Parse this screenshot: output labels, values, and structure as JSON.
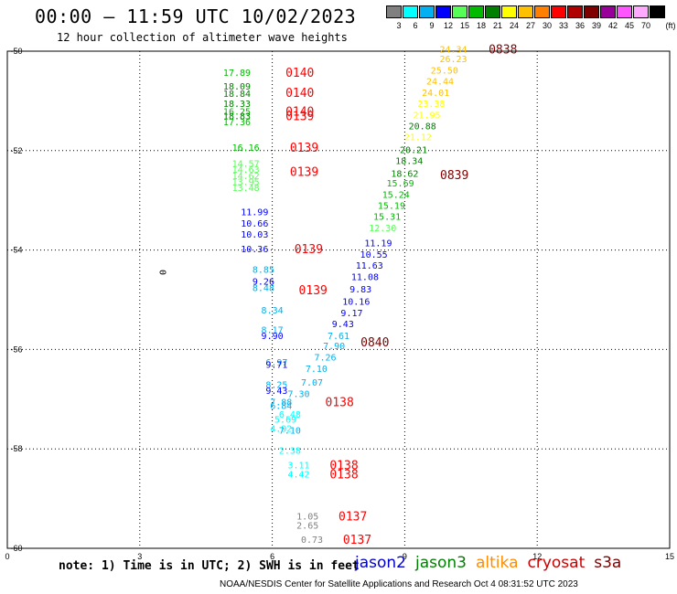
{
  "header": {
    "title": "00:00 – 11:59 UTC 10/02/2023",
    "subtitle": "12 hour collection of altimeter wave heights"
  },
  "legend": {
    "unit": "(ft)",
    "bins": [
      {
        "label": "3",
        "color": "#808080"
      },
      {
        "label": "6",
        "color": "#00ffff"
      },
      {
        "label": "9",
        "color": "#00b0f0"
      },
      {
        "label": "12",
        "color": "#0000ff"
      },
      {
        "label": "15",
        "color": "#55ff55"
      },
      {
        "label": "18",
        "color": "#00bb00"
      },
      {
        "label": "21",
        "color": "#008000"
      },
      {
        "label": "24",
        "color": "#ffff00"
      },
      {
        "label": "27",
        "color": "#ffc000"
      },
      {
        "label": "30",
        "color": "#ff8000"
      },
      {
        "label": "33",
        "color": "#ff0000"
      },
      {
        "label": "36",
        "color": "#b00000"
      },
      {
        "label": "39",
        "color": "#800000"
      },
      {
        "label": "42",
        "color": "#990099"
      },
      {
        "label": "45",
        "color": "#ff55ff"
      },
      {
        "label": "70",
        "color": "#ffaaff"
      },
      {
        "label": "",
        "color": "#000000"
      }
    ]
  },
  "note": "note: 1) Time is in UTC; 2) SWH is in feet",
  "satellites": [
    {
      "name": "jason2",
      "color": "#0000cc"
    },
    {
      "name": "jason3",
      "color": "#008000"
    },
    {
      "name": "altika",
      "color": "#ff8c00"
    },
    {
      "name": "cryosat",
      "color": "#cc0000"
    },
    {
      "name": "s3a",
      "color": "#800000"
    }
  ],
  "footer": "NOAA/NESDIS Center for Satellite Applications and Research   Oct  4 08:31:52 UTC 2023",
  "chart_data": {
    "type": "scatter",
    "x_ticks": [
      "0",
      "3",
      "6",
      "9",
      "12",
      "15"
    ],
    "y_ticks": [
      "-50",
      "-52",
      "-54",
      "-56",
      "-58",
      "-60"
    ],
    "xlim": [
      0,
      15
    ],
    "ylim": [
      -60.0,
      -50.0
    ],
    "grid": true,
    "contour_label": "0",
    "pass_labels": [
      {
        "text": "0140",
        "x": 6.3,
        "y": -50.42,
        "color": "#ff0000"
      },
      {
        "text": "0140",
        "x": 6.3,
        "y": -50.83,
        "color": "#ff0000"
      },
      {
        "text": "0140",
        "x": 6.3,
        "y": -51.2,
        "color": "#ff0000"
      },
      {
        "text": "0139",
        "x": 6.3,
        "y": -51.3,
        "color": "#ff0000"
      },
      {
        "text": "0139",
        "x": 6.4,
        "y": -51.93,
        "color": "#ff0000"
      },
      {
        "text": "0139",
        "x": 6.4,
        "y": -52.42,
        "color": "#ff0000"
      },
      {
        "text": "0139",
        "x": 6.5,
        "y": -53.97,
        "color": "#ff0000"
      },
      {
        "text": "0139",
        "x": 6.6,
        "y": -54.8,
        "color": "#ff0000"
      },
      {
        "text": "0138",
        "x": 7.2,
        "y": -57.05,
        "color": "#ff0000"
      },
      {
        "text": "0138",
        "x": 7.3,
        "y": -58.32,
        "color": "#ff0000"
      },
      {
        "text": "0138",
        "x": 7.3,
        "y": -58.5,
        "color": "#ff0000"
      },
      {
        "text": "0137",
        "x": 7.5,
        "y": -59.35,
        "color": "#ff0000"
      },
      {
        "text": "0137",
        "x": 7.6,
        "y": -59.82,
        "color": "#ff0000"
      },
      {
        "text": "0838",
        "x": 10.9,
        "y": -49.95,
        "color": "#800000"
      },
      {
        "text": "0839",
        "x": 9.8,
        "y": -52.48,
        "color": "#800000"
      },
      {
        "text": "0840",
        "x": 8.0,
        "y": -55.85,
        "color": "#800000"
      }
    ],
    "swh_labels": [
      {
        "v": "17.89",
        "x": 5.2,
        "y": -50.42,
        "color": "#00bb00"
      },
      {
        "v": "18.09",
        "x": 5.2,
        "y": -50.7,
        "color": "#008000"
      },
      {
        "v": "18.84",
        "x": 5.2,
        "y": -50.85,
        "color": "#008000"
      },
      {
        "v": "18.33",
        "x": 5.2,
        "y": -51.05,
        "color": "#008000"
      },
      {
        "v": "16.25",
        "x": 5.2,
        "y": -51.2,
        "color": "#00bb00"
      },
      {
        "v": "18.83",
        "x": 5.2,
        "y": -51.3,
        "color": "#008000"
      },
      {
        "v": "17.36",
        "x": 5.2,
        "y": -51.42,
        "color": "#00bb00"
      },
      {
        "v": "16.16",
        "x": 5.4,
        "y": -51.93,
        "color": "#00bb00"
      },
      {
        "v": "14.57",
        "x": 5.4,
        "y": -52.25,
        "color": "#55ff55"
      },
      {
        "v": "14.63",
        "x": 5.4,
        "y": -52.37,
        "color": "#55ff55"
      },
      {
        "v": "14.62",
        "x": 5.4,
        "y": -52.5,
        "color": "#55ff55"
      },
      {
        "v": "13.95",
        "x": 5.4,
        "y": -52.62,
        "color": "#55ff55"
      },
      {
        "v": "13.48",
        "x": 5.4,
        "y": -52.74,
        "color": "#55ff55"
      },
      {
        "v": "11.99",
        "x": 5.6,
        "y": -53.23,
        "color": "#0000ff"
      },
      {
        "v": "10.66",
        "x": 5.6,
        "y": -53.46,
        "color": "#0000ff"
      },
      {
        "v": "10.03",
        "x": 5.6,
        "y": -53.68,
        "color": "#0000ff"
      },
      {
        "v": "10.36",
        "x": 5.6,
        "y": -53.97,
        "color": "#0000ff"
      },
      {
        "v": "8.85",
        "x": 5.8,
        "y": -54.38,
        "color": "#00b0f0"
      },
      {
        "v": "9.26",
        "x": 5.8,
        "y": -54.62,
        "color": "#0000ff"
      },
      {
        "v": "8.48",
        "x": 5.8,
        "y": -54.75,
        "color": "#00b0f0"
      },
      {
        "v": "8.34",
        "x": 6.0,
        "y": -55.2,
        "color": "#00b0f0"
      },
      {
        "v": "8.17",
        "x": 6.0,
        "y": -55.6,
        "color": "#00b0f0"
      },
      {
        "v": "9.90",
        "x": 6.0,
        "y": -55.72,
        "color": "#0000ff"
      },
      {
        "v": "6.97",
        "x": 6.1,
        "y": -56.25,
        "color": "#00b0f0"
      },
      {
        "v": "9.71",
        "x": 6.1,
        "y": -56.3,
        "color": "#0000ff"
      },
      {
        "v": "8.25",
        "x": 6.1,
        "y": -56.7,
        "color": "#00b0f0"
      },
      {
        "v": "9.43",
        "x": 6.1,
        "y": -56.82,
        "color": "#0000ff"
      },
      {
        "v": "7.30",
        "x": 6.6,
        "y": -56.88,
        "color": "#00b0f0"
      },
      {
        "v": "7.88",
        "x": 6.2,
        "y": -57.05,
        "color": "#00b0f0"
      },
      {
        "v": "6.84",
        "x": 6.2,
        "y": -57.12,
        "color": "#00b0f0"
      },
      {
        "v": "6.48",
        "x": 6.4,
        "y": -57.3,
        "color": "#00ffff"
      },
      {
        "v": "5.69",
        "x": 6.3,
        "y": -57.4,
        "color": "#00ffff"
      },
      {
        "v": "4.92",
        "x": 6.2,
        "y": -57.58,
        "color": "#00ffff"
      },
      {
        "v": "7.10",
        "x": 6.4,
        "y": -57.62,
        "color": "#00b0f0"
      },
      {
        "v": "2.38",
        "x": 6.4,
        "y": -58.02,
        "color": "#00ffff"
      },
      {
        "v": "3.11",
        "x": 6.6,
        "y": -58.32,
        "color": "#00ffff"
      },
      {
        "v": "4.42",
        "x": 6.6,
        "y": -58.5,
        "color": "#00ffff"
      },
      {
        "v": "1.05",
        "x": 6.8,
        "y": -59.35,
        "color": "#808080"
      },
      {
        "v": "2.65",
        "x": 6.8,
        "y": -59.53,
        "color": "#808080"
      },
      {
        "v": "0.73",
        "x": 6.9,
        "y": -59.82,
        "color": "#808080"
      },
      {
        "v": "24.34",
        "x": 10.1,
        "y": -49.95,
        "color": "#ffc000"
      },
      {
        "v": "26.23",
        "x": 10.1,
        "y": -50.15,
        "color": "#ffc000"
      },
      {
        "v": "25.50",
        "x": 9.9,
        "y": -50.38,
        "color": "#ffc000"
      },
      {
        "v": "24.44",
        "x": 9.8,
        "y": -50.6,
        "color": "#ffc000"
      },
      {
        "v": "24.01",
        "x": 9.7,
        "y": -50.83,
        "color": "#ffc000"
      },
      {
        "v": "23.38",
        "x": 9.6,
        "y": -51.05,
        "color": "#ffff00"
      },
      {
        "v": "21.95",
        "x": 9.5,
        "y": -51.28,
        "color": "#ffff00"
      },
      {
        "v": "20.88",
        "x": 9.4,
        "y": -51.5,
        "color": "#008000"
      },
      {
        "v": "21.12",
        "x": 9.3,
        "y": -51.72,
        "color": "#ffff00"
      },
      {
        "v": "20.21",
        "x": 9.2,
        "y": -51.98,
        "color": "#008000"
      },
      {
        "v": "18.34",
        "x": 9.1,
        "y": -52.2,
        "color": "#008000"
      },
      {
        "v": "18.62",
        "x": 9.0,
        "y": -52.45,
        "color": "#008000"
      },
      {
        "v": "15.69",
        "x": 8.9,
        "y": -52.65,
        "color": "#00bb00"
      },
      {
        "v": "15.24",
        "x": 8.8,
        "y": -52.88,
        "color": "#00bb00"
      },
      {
        "v": "15.19",
        "x": 8.7,
        "y": -53.1,
        "color": "#00bb00"
      },
      {
        "v": "15.31",
        "x": 8.6,
        "y": -53.32,
        "color": "#00bb00"
      },
      {
        "v": "12.30",
        "x": 8.5,
        "y": -53.55,
        "color": "#55ff55"
      },
      {
        "v": "11.19",
        "x": 8.4,
        "y": -53.85,
        "color": "#0000ff"
      },
      {
        "v": "10.55",
        "x": 8.3,
        "y": -54.08,
        "color": "#0000ff"
      },
      {
        "v": "11.63",
        "x": 8.2,
        "y": -54.3,
        "color": "#0000ff"
      },
      {
        "v": "11.08",
        "x": 8.1,
        "y": -54.53,
        "color": "#0000ff"
      },
      {
        "v": "9.83",
        "x": 8.0,
        "y": -54.78,
        "color": "#0000ff"
      },
      {
        "v": "10.16",
        "x": 7.9,
        "y": -55.03,
        "color": "#0000ff"
      },
      {
        "v": "9.17",
        "x": 7.8,
        "y": -55.26,
        "color": "#0000ff"
      },
      {
        "v": "9.43",
        "x": 7.6,
        "y": -55.48,
        "color": "#0000ff"
      },
      {
        "v": "7.61",
        "x": 7.5,
        "y": -55.72,
        "color": "#00b0f0"
      },
      {
        "v": "7.90",
        "x": 7.4,
        "y": -55.92,
        "color": "#00b0f0"
      },
      {
        "v": "7.26",
        "x": 7.2,
        "y": -56.15,
        "color": "#00b0f0"
      },
      {
        "v": "7.10",
        "x": 7.0,
        "y": -56.38,
        "color": "#00b0f0"
      },
      {
        "v": "7.07",
        "x": 6.9,
        "y": -56.65,
        "color": "#00b0f0"
      }
    ]
  }
}
